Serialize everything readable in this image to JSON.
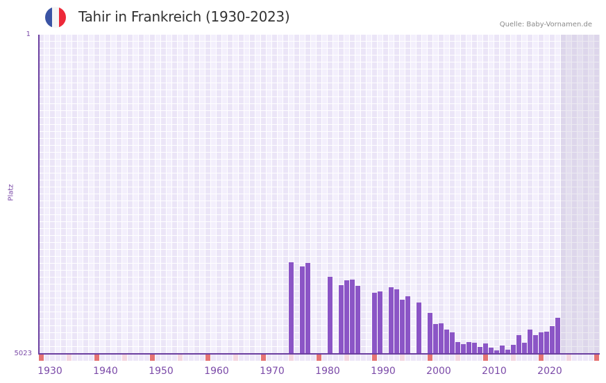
{
  "header": {
    "title": "Tahir in Frankreich (1930-2023)",
    "source": "Quelle: Baby-Vornamen.de",
    "flag": {
      "icon": "france-flag-icon",
      "colors": [
        "#3a53a4",
        "#f5f5f5",
        "#ed2939"
      ]
    }
  },
  "colors": {
    "bar": "#8b55c6",
    "axis": "#6b3fa0",
    "marker_decade": "#e57373",
    "marker_half": "#f4d6e0",
    "marker_other": "#ede7f8"
  },
  "axis": {
    "y_top_label": "1",
    "y_bottom_label": "5023",
    "y_title": "Platz",
    "x_ticks": [
      "1930",
      "1940",
      "1950",
      "1960",
      "1970",
      "1980",
      "1990",
      "2000",
      "2010",
      "2020"
    ]
  },
  "chart_data": {
    "type": "bar",
    "title": "Tahir in Frankreich (1930-2023)",
    "subtitle": "Quelle: Baby-Vornamen.de",
    "xlabel": "",
    "ylabel": "Platz",
    "ylim": [
      5023,
      1
    ],
    "y_inverted": true,
    "x_range": [
      1930,
      2030
    ],
    "grid": true,
    "legend": null,
    "categories": [
      1975,
      1977,
      1978,
      1982,
      1984,
      1985,
      1986,
      1987,
      1990,
      1991,
      1993,
      1994,
      1995,
      1996,
      1998,
      2000,
      2001,
      2002,
      2003,
      2004,
      2005,
      2006,
      2007,
      2008,
      2009,
      2010,
      2011,
      2012,
      2013,
      2014,
      2015,
      2016,
      2017,
      2018,
      2019,
      2020,
      2021,
      2022,
      2023
    ],
    "values": [
      3582,
      3647,
      3593,
      3811,
      3942,
      3866,
      3855,
      3953,
      4062,
      4040,
      3975,
      4008,
      4171,
      4117,
      4215,
      4379,
      4553,
      4542,
      4641,
      4684,
      4837,
      4870,
      4837,
      4848,
      4914,
      4859,
      4925,
      4968,
      4892,
      4957,
      4881,
      4728,
      4848,
      4641,
      4728,
      4684,
      4673,
      4586,
      4455
    ]
  }
}
